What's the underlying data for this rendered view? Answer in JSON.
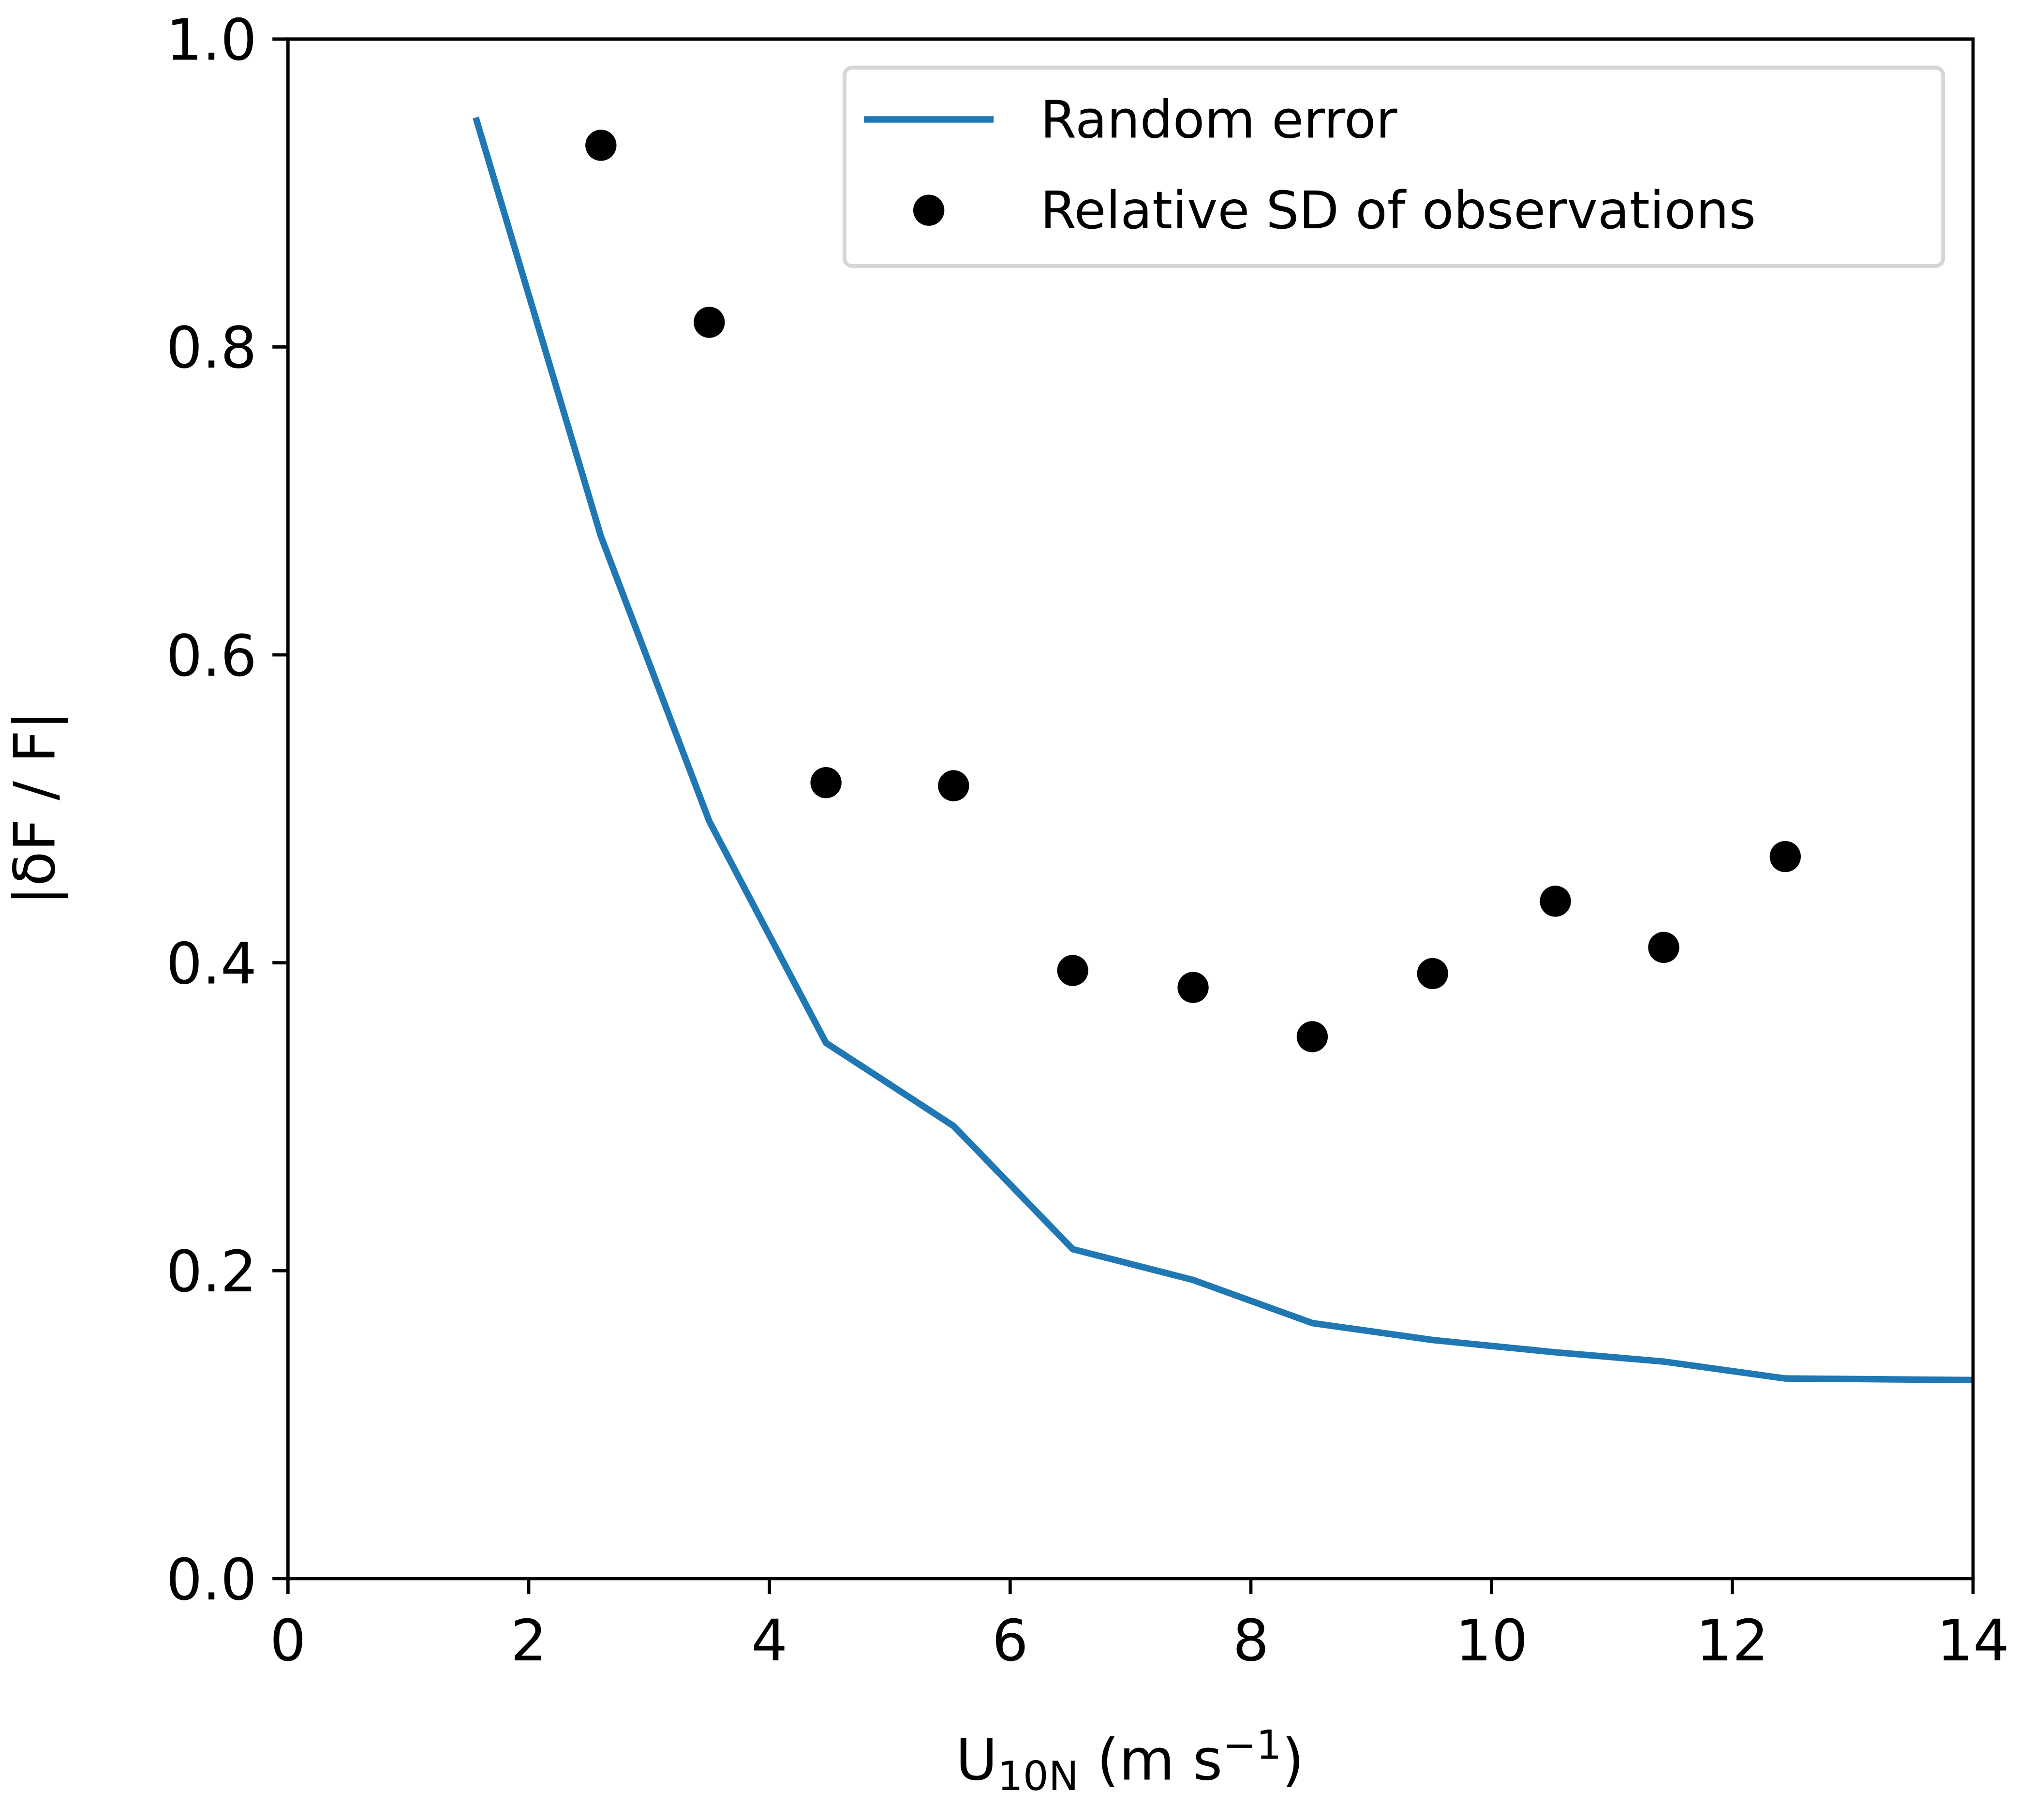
{
  "chart_data": {
    "type": "line",
    "title": "",
    "xlabel_main": "U",
    "xlabel_sub": "10N",
    "xlabel_units": " (m s",
    "xlabel_exp": "−1",
    "xlabel_close": ")",
    "ylabel": "|δF / F|",
    "xlim": [
      0,
      14
    ],
    "ylim": [
      0,
      1.0
    ],
    "xticks": [
      0,
      2,
      4,
      6,
      8,
      10,
      12,
      14
    ],
    "xtick_labels": [
      "0",
      "2",
      "4",
      "6",
      "8",
      "10",
      "12",
      "14"
    ],
    "yticks": [
      0,
      0.2,
      0.4,
      0.6,
      0.8,
      1.0
    ],
    "ytick_labels": [
      "0.0",
      "0.2",
      "0.4",
      "0.6",
      "0.8",
      "1.0"
    ],
    "grid": false,
    "legend_position": "top-right",
    "series": [
      {
        "name": "Random error",
        "kind": "line",
        "color": "#1f77b4",
        "x": [
          1.56,
          2.6,
          3.5,
          4.47,
          5.53,
          6.52,
          7.52,
          8.51,
          9.51,
          10.53,
          11.43,
          12.44,
          14.0
        ],
        "y": [
          0.949,
          0.677,
          0.492,
          0.348,
          0.294,
          0.214,
          0.194,
          0.166,
          0.155,
          0.147,
          0.141,
          0.13,
          0.129
        ]
      },
      {
        "name": "Relative SD of observations",
        "kind": "scatter",
        "color": "#000000",
        "x": [
          2.6,
          3.5,
          4.47,
          5.53,
          6.52,
          7.52,
          8.51,
          9.51,
          10.53,
          11.43,
          12.44
        ],
        "y": [
          0.931,
          0.816,
          0.517,
          0.515,
          0.395,
          0.384,
          0.352,
          0.393,
          0.44,
          0.41,
          0.469
        ]
      }
    ]
  }
}
